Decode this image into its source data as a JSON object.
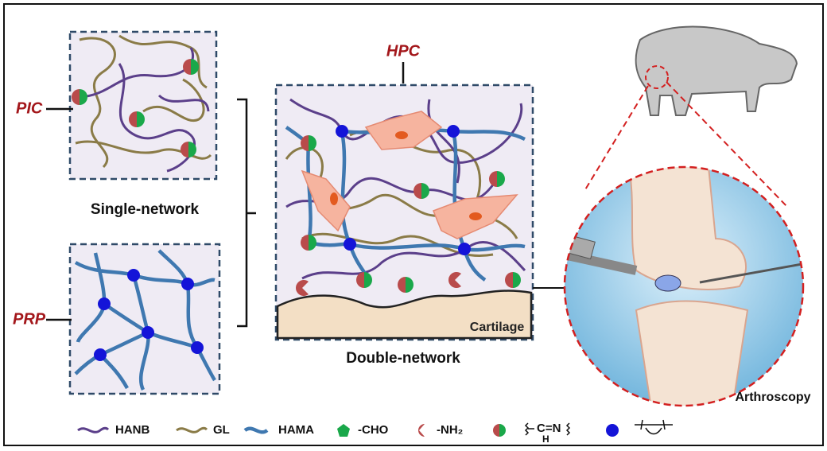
{
  "labels": {
    "pic": "PIC",
    "prp": "PRP",
    "hpc": "HPC",
    "single_network": "Single-network",
    "double_network": "Double-network",
    "cartilage": "Cartilage",
    "arthroscopy": "Arthroscopy"
  },
  "legend": {
    "hanb": "HANB",
    "gl": "GL",
    "hama": "HAMA",
    "cho": "-CHO",
    "nh2": "-NH₂",
    "imine": "C=N",
    "imine_h": "H"
  }
}
